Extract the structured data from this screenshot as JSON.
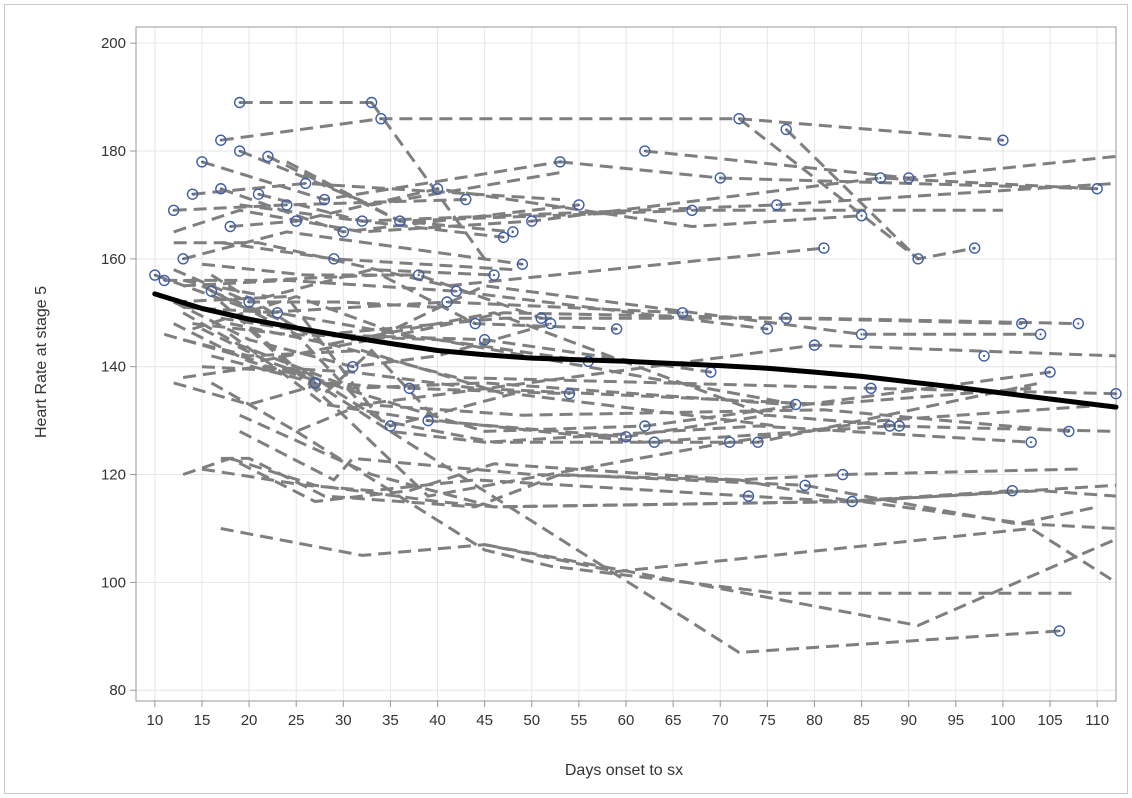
{
  "chart_data": {
    "type": "scatter",
    "title": "",
    "xlabel": "Days onset to sx",
    "ylabel": "Heart Rate at stage 5",
    "xlim": [
      8,
      112
    ],
    "ylim": [
      78,
      203
    ],
    "xticks": [
      10,
      15,
      20,
      25,
      30,
      35,
      40,
      45,
      50,
      55,
      60,
      65,
      70,
      75,
      80,
      85,
      90,
      95,
      100,
      105,
      110
    ],
    "yticks": [
      80,
      100,
      120,
      140,
      160,
      180,
      200
    ],
    "grid": true,
    "legend": "none",
    "colors": {
      "marker": "#3f5ea8",
      "trajectory": "#7f7f7f",
      "trend": "#000000",
      "grid": "#e6e6e6",
      "axis": "#999999"
    },
    "trend": {
      "name": "",
      "x": [
        10,
        15,
        20,
        25,
        30,
        35,
        40,
        45,
        50,
        55,
        60,
        65,
        70,
        75,
        80,
        85,
        90,
        95,
        100,
        105,
        112
      ],
      "y": [
        153.5,
        150.8,
        148.8,
        147.2,
        145.7,
        144.3,
        143.0,
        142.2,
        141.6,
        141.3,
        141.0,
        140.6,
        140.2,
        139.7,
        139.0,
        138.2,
        137.2,
        136.2,
        135.1,
        134.0,
        132.5
      ]
    },
    "trajectories": [
      {
        "x": [
          19,
          33
        ],
        "y": [
          189,
          189
        ]
      },
      {
        "x": [
          33,
          45
        ],
        "y": [
          189,
          160
        ]
      },
      {
        "x": [
          17,
          34,
          72
        ],
        "y": [
          182,
          186,
          186
        ]
      },
      {
        "x": [
          72,
          100
        ],
        "y": [
          186,
          182
        ]
      },
      {
        "x": [
          72,
          91
        ],
        "y": [
          186,
          160
        ]
      },
      {
        "x": [
          77,
          91,
          97
        ],
        "y": [
          184,
          160,
          162
        ]
      },
      {
        "x": [
          15,
          28,
          53
        ],
        "y": [
          178,
          171,
          178
        ]
      },
      {
        "x": [
          53,
          70,
          110
        ],
        "y": [
          178,
          175,
          173
        ]
      },
      {
        "x": [
          19,
          33,
          53
        ],
        "y": [
          180,
          170,
          176
        ]
      },
      {
        "x": [
          62,
          90,
          112
        ],
        "y": [
          180,
          175,
          179
        ]
      },
      {
        "x": [
          22,
          36,
          67,
          100
        ],
        "y": [
          179,
          167,
          169,
          169
        ]
      },
      {
        "x": [
          14,
          26,
          53
        ],
        "y": [
          172,
          174,
          171
        ]
      },
      {
        "x": [
          17,
          30,
          55
        ],
        "y": [
          173,
          165,
          170
        ]
      },
      {
        "x": [
          19,
          32,
          76,
          112
        ],
        "y": [
          170,
          167,
          170,
          174
        ]
      },
      {
        "x": [
          12,
          24,
          43
        ],
        "y": [
          169,
          170,
          171
        ]
      },
      {
        "x": [
          18,
          25,
          40,
          67,
          85
        ],
        "y": [
          166,
          167,
          173,
          166,
          168
        ]
      },
      {
        "x": [
          12,
          19,
          32,
          50,
          87,
          110
        ],
        "y": [
          165,
          169,
          165,
          167,
          175,
          173
        ]
      },
      {
        "x": [
          21,
          32,
          47
        ],
        "y": [
          172,
          167,
          164
        ]
      },
      {
        "x": [
          24,
          36,
          48
        ],
        "y": [
          178,
          167,
          165
        ]
      },
      {
        "x": [
          12,
          21,
          41,
          81
        ],
        "y": [
          163,
          163,
          155,
          162
        ]
      },
      {
        "x": [
          17,
          29,
          48
        ],
        "y": [
          163,
          160,
          158
        ]
      },
      {
        "x": [
          13,
          24,
          49
        ],
        "y": [
          160,
          165,
          159
        ]
      },
      {
        "x": [
          11,
          21,
          34,
          44,
          59
        ],
        "y": [
          156,
          156,
          157,
          148,
          147
        ]
      },
      {
        "x": [
          10,
          21,
          41,
          66
        ],
        "y": [
          157,
          150,
          152,
          150
        ]
      },
      {
        "x": [
          15,
          26,
          38,
          51
        ],
        "y": [
          159,
          157,
          157,
          149
        ]
      },
      {
        "x": [
          13,
          22,
          33,
          46
        ],
        "y": [
          156,
          153,
          158,
          157
        ]
      },
      {
        "x": [
          12,
          20,
          30,
          40
        ],
        "y": [
          158,
          152,
          152,
          151
        ]
      },
      {
        "x": [
          14,
          25,
          36,
          47,
          77,
          102
        ],
        "y": [
          147,
          153,
          146,
          150,
          149,
          148
        ]
      },
      {
        "x": [
          17,
          28,
          47,
          80,
          108
        ],
        "y": [
          149,
          146,
          149,
          149,
          148
        ]
      },
      {
        "x": [
          13,
          24,
          42,
          75
        ],
        "y": [
          155,
          156,
          154,
          147
        ]
      },
      {
        "x": [
          12,
          20,
          31,
          40,
          52
        ],
        "y": [
          152,
          145,
          140,
          142,
          148
        ]
      },
      {
        "x": [
          16,
          27,
          45,
          69
        ],
        "y": [
          154,
          146,
          145,
          139
        ]
      },
      {
        "x": [
          11,
          21,
          33,
          45,
          85,
          104
        ],
        "y": [
          146,
          141,
          145,
          155,
          146,
          146
        ]
      },
      {
        "x": [
          13,
          23,
          36,
          56
        ],
        "y": [
          151,
          150,
          146,
          141
        ]
      },
      {
        "x": [
          14,
          24,
          40,
          78
        ],
        "y": [
          148,
          146,
          145,
          133
        ]
      },
      {
        "x": [
          13,
          20,
          32,
          47
        ],
        "y": [
          145,
          142,
          143,
          135
        ]
      },
      {
        "x": [
          12,
          20,
          30
        ],
        "y": [
          148,
          141,
          136
        ]
      },
      {
        "x": [
          16,
          28,
          46,
          75
        ],
        "y": [
          157,
          144,
          150,
          131
        ]
      },
      {
        "x": [
          18,
          29,
          42,
          86,
          112
        ],
        "y": [
          148,
          144,
          138,
          136,
          135
        ]
      },
      {
        "x": [
          15,
          26,
          35,
          48,
          76
        ],
        "y": [
          140,
          139,
          129,
          135,
          129
        ]
      },
      {
        "x": [
          12,
          20,
          28,
          37,
          54
        ],
        "y": [
          137,
          133,
          137,
          136,
          135
        ]
      },
      {
        "x": [
          13,
          21,
          31,
          44,
          81,
          103
        ],
        "y": [
          138,
          140,
          139,
          136,
          133,
          136
        ]
      },
      {
        "x": [
          16,
          25,
          32,
          41,
          80,
          112
        ],
        "y": [
          137,
          128,
          133,
          135,
          144,
          142
        ]
      },
      {
        "x": [
          15,
          22,
          30,
          45,
          62,
          105
        ],
        "y": [
          147,
          141,
          136,
          128,
          129,
          139
        ]
      },
      {
        "x": [
          13,
          19,
          31,
          45,
          77
        ],
        "y": [
          150,
          144,
          136,
          137,
          133
        ]
      },
      {
        "x": [
          12,
          24,
          34,
          46,
          74,
          104
        ],
        "y": [
          152,
          153,
          130,
          126,
          126,
          137
        ]
      },
      {
        "x": [
          17,
          28,
          33,
          40,
          62,
          88,
          112
        ],
        "y": [
          152,
          135,
          143,
          130,
          126,
          129,
          128
        ]
      },
      {
        "x": [
          15,
          25,
          32,
          49,
          81,
          107
        ],
        "y": [
          155,
          146,
          133,
          131,
          132,
          128
        ]
      },
      {
        "x": [
          16,
          27,
          35,
          45,
          74,
          103
        ],
        "y": [
          142,
          137,
          128,
          126,
          129,
          126
        ]
      },
      {
        "x": [
          18,
          28,
          39,
          60,
          75,
          89
        ],
        "y": [
          146,
          133,
          130,
          127,
          131,
          129
        ]
      },
      {
        "x": [
          20,
          30,
          39,
          71,
          87,
          112
        ],
        "y": [
          147,
          131,
          116,
          126,
          130,
          133
        ]
      },
      {
        "x": [
          19,
          29,
          31,
          50,
          72,
          84,
          112
        ],
        "y": [
          128,
          119,
          123,
          120,
          119,
          115,
          118
        ]
      },
      {
        "x": [
          13,
          18,
          27,
          37,
          46,
          72,
          83,
          108
        ],
        "y": [
          120,
          123,
          115,
          117,
          122,
          119,
          120,
          121
        ]
      },
      {
        "x": [
          15,
          26,
          33,
          44,
          73,
          83,
          101
        ],
        "y": [
          121,
          118,
          117,
          119,
          116,
          115,
          117
        ]
      },
      {
        "x": [
          17,
          20,
          28,
          44,
          53,
          79,
          101,
          112
        ],
        "y": [
          123,
          123,
          116,
          114,
          120,
          118,
          111,
          110
        ]
      },
      {
        "x": [
          18,
          27,
          40,
          46,
          83,
          104,
          112
        ],
        "y": [
          123,
          118,
          115,
          114,
          115,
          117,
          116
        ]
      },
      {
        "x": [
          19,
          33,
          46,
          85,
          102,
          110
        ],
        "y": [
          131,
          120,
          114,
          115,
          111,
          114
        ]
      },
      {
        "x": [
          17,
          32,
          45,
          59,
          103,
          112
        ],
        "y": [
          110,
          105,
          107,
          102,
          110,
          100
        ]
      },
      {
        "x": [
          25,
          45,
          52,
          76,
          108
        ],
        "y": [
          128,
          106,
          103,
          98,
          98
        ]
      },
      {
        "x": [
          35,
          72,
          106
        ],
        "y": [
          128,
          87,
          91
        ]
      },
      {
        "x": [
          45,
          91,
          112
        ],
        "y": [
          107,
          92,
          108
        ]
      }
    ],
    "points": {
      "x": [
        19,
        33,
        17,
        34,
        72,
        100,
        77,
        91,
        97,
        15,
        28,
        53,
        70,
        110,
        19,
        62,
        90,
        22,
        36,
        67,
        14,
        26,
        17,
        30,
        55,
        32,
        76,
        12,
        24,
        43,
        18,
        25,
        40,
        85,
        50,
        87,
        21,
        47,
        48,
        81,
        29,
        13,
        49,
        11,
        44,
        59,
        10,
        41,
        66,
        38,
        51,
        46,
        20,
        77,
        102,
        108,
        42,
        75,
        31,
        52,
        16,
        45,
        69,
        85,
        104,
        23,
        56,
        78,
        80,
        27,
        60,
        35,
        37,
        54,
        86,
        112,
        62,
        105,
        74,
        88,
        39,
        71,
        89,
        84,
        83,
        73,
        101,
        79,
        107,
        103,
        63,
        98,
        106
      ],
      "y": [
        189,
        189,
        182,
        186,
        186,
        182,
        184,
        160,
        162,
        178,
        171,
        178,
        175,
        173,
        180,
        180,
        175,
        179,
        167,
        169,
        172,
        174,
        173,
        165,
        170,
        167,
        170,
        169,
        170,
        171,
        166,
        167,
        173,
        168,
        167,
        175,
        172,
        164,
        165,
        162,
        160,
        160,
        159,
        156,
        148,
        147,
        157,
        152,
        150,
        157,
        149,
        157,
        152,
        149,
        148,
        148,
        154,
        147,
        140,
        148,
        154,
        145,
        139,
        146,
        146,
        150,
        141,
        133,
        144,
        137,
        127,
        129,
        136,
        135,
        136,
        135,
        129,
        139,
        126,
        129,
        130,
        126,
        129,
        115,
        120,
        116,
        117,
        118,
        128,
        126,
        126,
        142,
        91
      ]
    }
  }
}
